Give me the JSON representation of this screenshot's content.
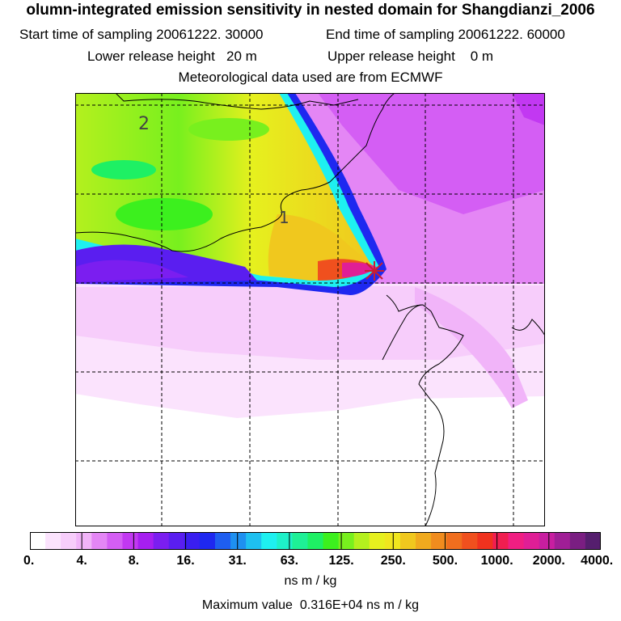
{
  "header": {
    "title": "olumn-integrated emission sensitivity in nested domain for Shangdianzi_2006",
    "start_label": "Start time of sampling",
    "start_value": "20061222. 30000",
    "end_label": "End time of sampling",
    "end_value": "20061222. 60000",
    "lower_label": "Lower release height",
    "lower_value": "20 m",
    "upper_label": "Upper release height",
    "upper_value": "0 m",
    "met_line": "Meteorological data used are from ECMWF"
  },
  "map": {
    "contour_labels": [
      "2",
      "1"
    ],
    "release_marker": "release-site-marker"
  },
  "legend": {
    "ticks": [
      "0.",
      "4.",
      "8.",
      "16.",
      "31.",
      "63.",
      "125.",
      "250.",
      "500.",
      "1000.",
      "2000.",
      "4000."
    ],
    "units": "ns m / kg",
    "colors": [
      "#ffffff",
      "#fbe3fd",
      "#f7cdfb",
      "#f1b4f9",
      "#e486f5",
      "#d45ef4",
      "#c238f2",
      "#a61ff0",
      "#7b1ef0",
      "#5a1ef0",
      "#3a1ef0",
      "#1e28f0",
      "#1e5ef0",
      "#1e90f0",
      "#1ec0f0",
      "#1ef0f0",
      "#1ef0c8",
      "#1ef096",
      "#1ef064",
      "#3cf01e",
      "#78f01e",
      "#b4f01e",
      "#e6f01e",
      "#f0e61e",
      "#f0c81e",
      "#f0aa1e",
      "#f08c1e",
      "#f06e1e",
      "#f0501e",
      "#f0321e",
      "#f01e50",
      "#f01e82",
      "#e01e96",
      "#c81ea0",
      "#a01e96",
      "#7a1e82",
      "#551e6e"
    ]
  },
  "footer": {
    "max_label": "Maximum value",
    "max_value": "0.316E+04",
    "max_units": "ns m / kg"
  }
}
